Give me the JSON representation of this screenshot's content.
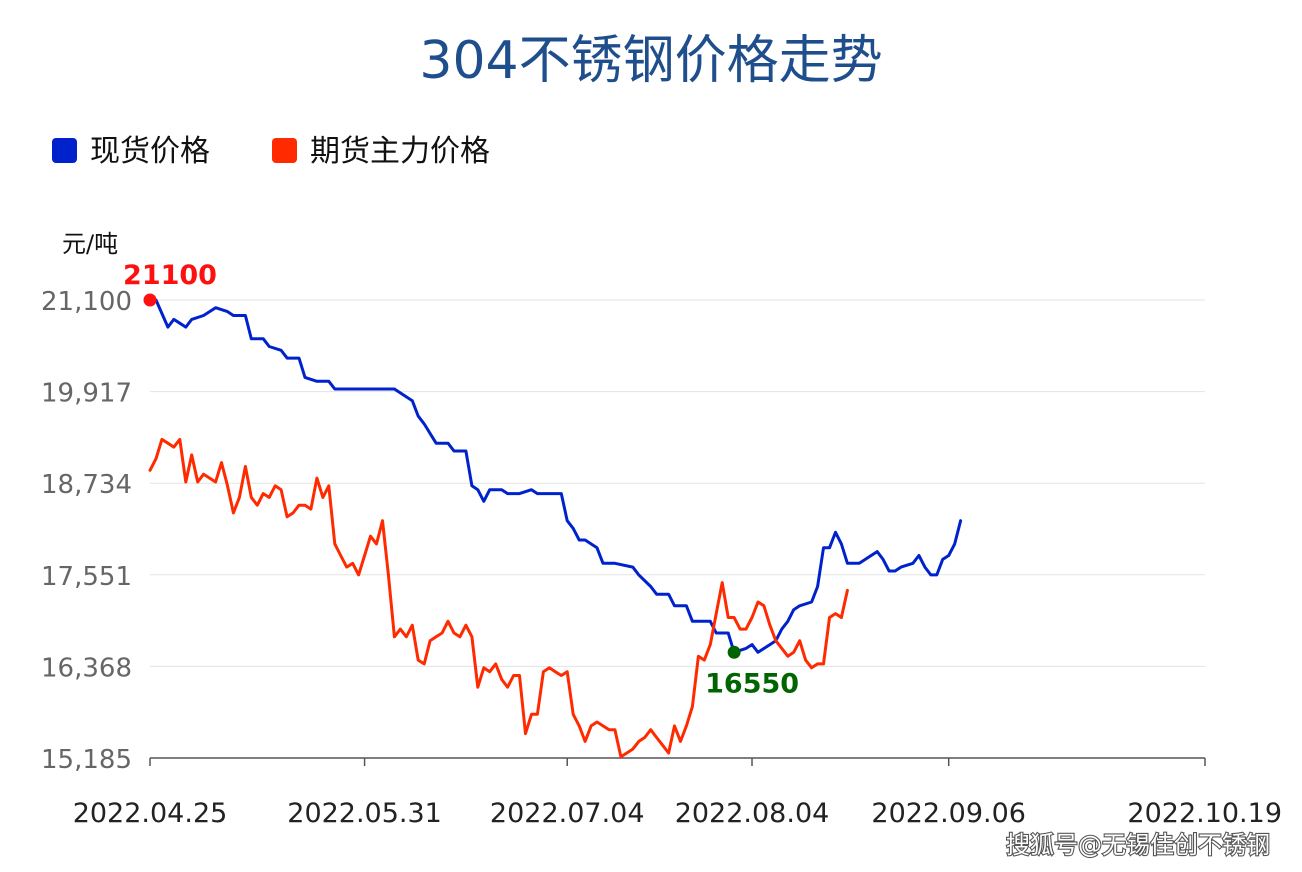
{
  "chart_data": {
    "type": "line",
    "title": "304不锈钢价格走势",
    "ylabel": "元/吨",
    "legend_position": "top-left",
    "grid": true,
    "ylim": [
      15185,
      21100
    ],
    "y_ticks": [
      {
        "value": 21100,
        "label": "21,100"
      },
      {
        "value": 19917,
        "label": "19,917"
      },
      {
        "value": 18734,
        "label": "18,734"
      },
      {
        "value": 17551,
        "label": "17,551"
      },
      {
        "value": 16368,
        "label": "16,368"
      },
      {
        "value": 15185,
        "label": "15,185"
      }
    ],
    "x_range": [
      0,
      177
    ],
    "x_ticks": [
      {
        "index": 0,
        "label": "2022.04.25"
      },
      {
        "index": 36,
        "label": "2022.05.31"
      },
      {
        "index": 70,
        "label": "2022.07.04"
      },
      {
        "index": 101,
        "label": "2022.08.04"
      },
      {
        "index": 134,
        "label": "2022.09.06"
      },
      {
        "index": 177,
        "label": "2022.10.19"
      }
    ],
    "series": [
      {
        "name": "现货价格",
        "color": "#0022cc",
        "points": [
          [
            0,
            21100
          ],
          [
            1,
            21100
          ],
          [
            3,
            20750
          ],
          [
            4,
            20850
          ],
          [
            5,
            20800
          ],
          [
            6,
            20750
          ],
          [
            7,
            20850
          ],
          [
            9,
            20900
          ],
          [
            10,
            20950
          ],
          [
            11,
            21000
          ],
          [
            13,
            20950
          ],
          [
            14,
            20900
          ],
          [
            16,
            20900
          ],
          [
            17,
            20600
          ],
          [
            19,
            20600
          ],
          [
            20,
            20500
          ],
          [
            22,
            20450
          ],
          [
            23,
            20350
          ],
          [
            25,
            20350
          ],
          [
            26,
            20100
          ],
          [
            28,
            20050
          ],
          [
            30,
            20050
          ],
          [
            31,
            19950
          ],
          [
            34,
            19950
          ],
          [
            36,
            19950
          ],
          [
            39,
            19950
          ],
          [
            41,
            19950
          ],
          [
            42,
            19900
          ],
          [
            44,
            19800
          ],
          [
            45,
            19600
          ],
          [
            46,
            19500
          ],
          [
            48,
            19250
          ],
          [
            50,
            19250
          ],
          [
            51,
            19150
          ],
          [
            53,
            19150
          ],
          [
            54,
            18700
          ],
          [
            55,
            18650
          ],
          [
            56,
            18500
          ],
          [
            57,
            18650
          ],
          [
            59,
            18650
          ],
          [
            60,
            18600
          ],
          [
            62,
            18600
          ],
          [
            64,
            18650
          ],
          [
            65,
            18600
          ],
          [
            67,
            18600
          ],
          [
            69,
            18600
          ],
          [
            70,
            18250
          ],
          [
            71,
            18150
          ],
          [
            72,
            18000
          ],
          [
            73,
            18000
          ],
          [
            75,
            17900
          ],
          [
            76,
            17700
          ],
          [
            78,
            17700
          ],
          [
            81,
            17650
          ],
          [
            82,
            17550
          ],
          [
            84,
            17400
          ],
          [
            85,
            17300
          ],
          [
            87,
            17300
          ],
          [
            88,
            17150
          ],
          [
            90,
            17150
          ],
          [
            91,
            16950
          ],
          [
            94,
            16950
          ],
          [
            95,
            16800
          ],
          [
            97,
            16800
          ],
          [
            98,
            16550
          ],
          [
            100,
            16600
          ],
          [
            101,
            16650
          ],
          [
            102,
            16550
          ],
          [
            104,
            16650
          ],
          [
            105,
            16700
          ],
          [
            106,
            16850
          ],
          [
            107,
            16950
          ],
          [
            108,
            17100
          ],
          [
            109,
            17150
          ],
          [
            111,
            17200
          ],
          [
            112,
            17400
          ],
          [
            113,
            17900
          ],
          [
            114,
            17900
          ],
          [
            115,
            18100
          ],
          [
            116,
            17950
          ],
          [
            117,
            17700
          ],
          [
            119,
            17700
          ],
          [
            121,
            17800
          ],
          [
            122,
            17850
          ],
          [
            123,
            17750
          ],
          [
            124,
            17600
          ],
          [
            125,
            17600
          ],
          [
            126,
            17650
          ],
          [
            128,
            17700
          ],
          [
            129,
            17800
          ],
          [
            130,
            17650
          ],
          [
            131,
            17550
          ],
          [
            132,
            17550
          ],
          [
            133,
            17750
          ],
          [
            134,
            17800
          ],
          [
            135,
            17950
          ],
          [
            136,
            18250
          ]
        ]
      },
      {
        "name": "期货主力价格",
        "color": "#ff2a00",
        "points": [
          [
            0,
            18900
          ],
          [
            1,
            19050
          ],
          [
            2,
            19300
          ],
          [
            3,
            19250
          ],
          [
            4,
            19200
          ],
          [
            5,
            19300
          ],
          [
            6,
            18750
          ],
          [
            7,
            19100
          ],
          [
            8,
            18750
          ],
          [
            9,
            18850
          ],
          [
            10,
            18800
          ],
          [
            11,
            18750
          ],
          [
            12,
            19000
          ],
          [
            13,
            18700
          ],
          [
            14,
            18350
          ],
          [
            15,
            18550
          ],
          [
            16,
            18950
          ],
          [
            17,
            18550
          ],
          [
            18,
            18450
          ],
          [
            19,
            18600
          ],
          [
            20,
            18550
          ],
          [
            21,
            18700
          ],
          [
            22,
            18650
          ],
          [
            23,
            18300
          ],
          [
            24,
            18350
          ],
          [
            25,
            18450
          ],
          [
            26,
            18450
          ],
          [
            27,
            18400
          ],
          [
            28,
            18800
          ],
          [
            29,
            18550
          ],
          [
            30,
            18700
          ],
          [
            31,
            17950
          ],
          [
            32,
            17800
          ],
          [
            33,
            17650
          ],
          [
            34,
            17700
          ],
          [
            35,
            17550
          ],
          [
            36,
            17800
          ],
          [
            37,
            18050
          ],
          [
            38,
            17950
          ],
          [
            39,
            18250
          ],
          [
            40,
            17550
          ],
          [
            41,
            16750
          ],
          [
            42,
            16850
          ],
          [
            43,
            16750
          ],
          [
            44,
            16900
          ],
          [
            45,
            16450
          ],
          [
            46,
            16400
          ],
          [
            47,
            16700
          ],
          [
            48,
            16750
          ],
          [
            49,
            16800
          ],
          [
            50,
            16950
          ],
          [
            51,
            16800
          ],
          [
            52,
            16750
          ],
          [
            53,
            16900
          ],
          [
            54,
            16750
          ],
          [
            55,
            16100
          ],
          [
            56,
            16350
          ],
          [
            57,
            16300
          ],
          [
            58,
            16400
          ],
          [
            59,
            16200
          ],
          [
            60,
            16100
          ],
          [
            61,
            16250
          ],
          [
            62,
            16250
          ],
          [
            63,
            15500
          ],
          [
            64,
            15750
          ],
          [
            65,
            15750
          ],
          [
            66,
            16300
          ],
          [
            67,
            16350
          ],
          [
            68,
            16300
          ],
          [
            69,
            16250
          ],
          [
            70,
            16300
          ],
          [
            71,
            15750
          ],
          [
            72,
            15600
          ],
          [
            73,
            15400
          ],
          [
            74,
            15600
          ],
          [
            75,
            15650
          ],
          [
            76,
            15600
          ],
          [
            77,
            15550
          ],
          [
            78,
            15550
          ],
          [
            79,
            15200
          ],
          [
            80,
            15250
          ],
          [
            81,
            15300
          ],
          [
            82,
            15400
          ],
          [
            83,
            15450
          ],
          [
            84,
            15550
          ],
          [
            85,
            15450
          ],
          [
            86,
            15350
          ],
          [
            87,
            15250
          ],
          [
            88,
            15600
          ],
          [
            89,
            15400
          ],
          [
            90,
            15600
          ],
          [
            91,
            15850
          ],
          [
            92,
            16500
          ],
          [
            93,
            16450
          ],
          [
            94,
            16650
          ],
          [
            95,
            17050
          ],
          [
            96,
            17450
          ],
          [
            97,
            17000
          ],
          [
            98,
            17000
          ],
          [
            99,
            16850
          ],
          [
            100,
            16850
          ],
          [
            101,
            17000
          ],
          [
            102,
            17200
          ],
          [
            103,
            17150
          ],
          [
            104,
            16900
          ],
          [
            105,
            16700
          ],
          [
            106,
            16600
          ],
          [
            107,
            16500
          ],
          [
            108,
            16550
          ],
          [
            109,
            16700
          ],
          [
            110,
            16450
          ],
          [
            111,
            16350
          ],
          [
            112,
            16400
          ],
          [
            113,
            16400
          ],
          [
            114,
            17000
          ],
          [
            115,
            17050
          ],
          [
            116,
            17000
          ],
          [
            117,
            17350
          ]
        ]
      }
    ],
    "annotations": [
      {
        "label": "21100",
        "index": 0,
        "value": 21100,
        "color": "#ff1010"
      },
      {
        "label": "16550",
        "index": 98,
        "value": 16550,
        "color": "#006400"
      }
    ],
    "watermark": "搜狐号@无锡佳创不锈钢"
  }
}
